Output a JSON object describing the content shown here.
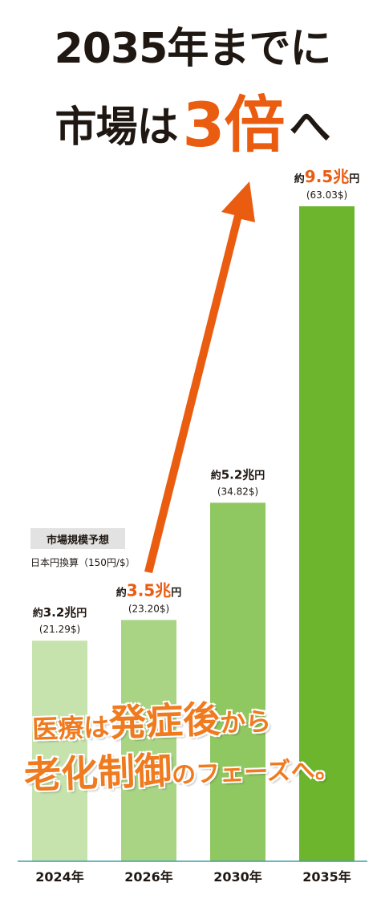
{
  "headline": {
    "line1": "2035年までに",
    "line2_before": "市場は",
    "line2_highlight": "3倍",
    "line2_after": "へ"
  },
  "legend": {
    "title": "市場規模予想",
    "note": "日本円換算（150円/$）"
  },
  "overlay": {
    "line1_a": "医療は",
    "line1_b": "発症後",
    "line1_c": "から",
    "line2_a": "老化制御",
    "line2_b": "のフェーズへ。"
  },
  "colors": {
    "accent": "#ea5c10",
    "text": "#1f1712",
    "axis": "#3e9bb4",
    "bars": [
      "#c6e3ae",
      "#a8d484",
      "#8fc761",
      "#6cb52d"
    ]
  },
  "chart_data": {
    "type": "bar",
    "categories": [
      "2024年",
      "2026年",
      "2030年",
      "2035年"
    ],
    "values": [
      3.2,
      3.5,
      5.2,
      9.5
    ],
    "usd_labels": [
      "(21.29$)",
      "(23.20$)",
      "(34.82$)",
      "(63.03$)"
    ],
    "value_prefix": "約",
    "value_unit": "兆円",
    "value_labels": [
      "3.2兆",
      "3.5兆",
      "5.2兆",
      "9.5兆"
    ],
    "ylim": [
      0,
      9.5
    ],
    "grid": false,
    "legend": "none"
  }
}
